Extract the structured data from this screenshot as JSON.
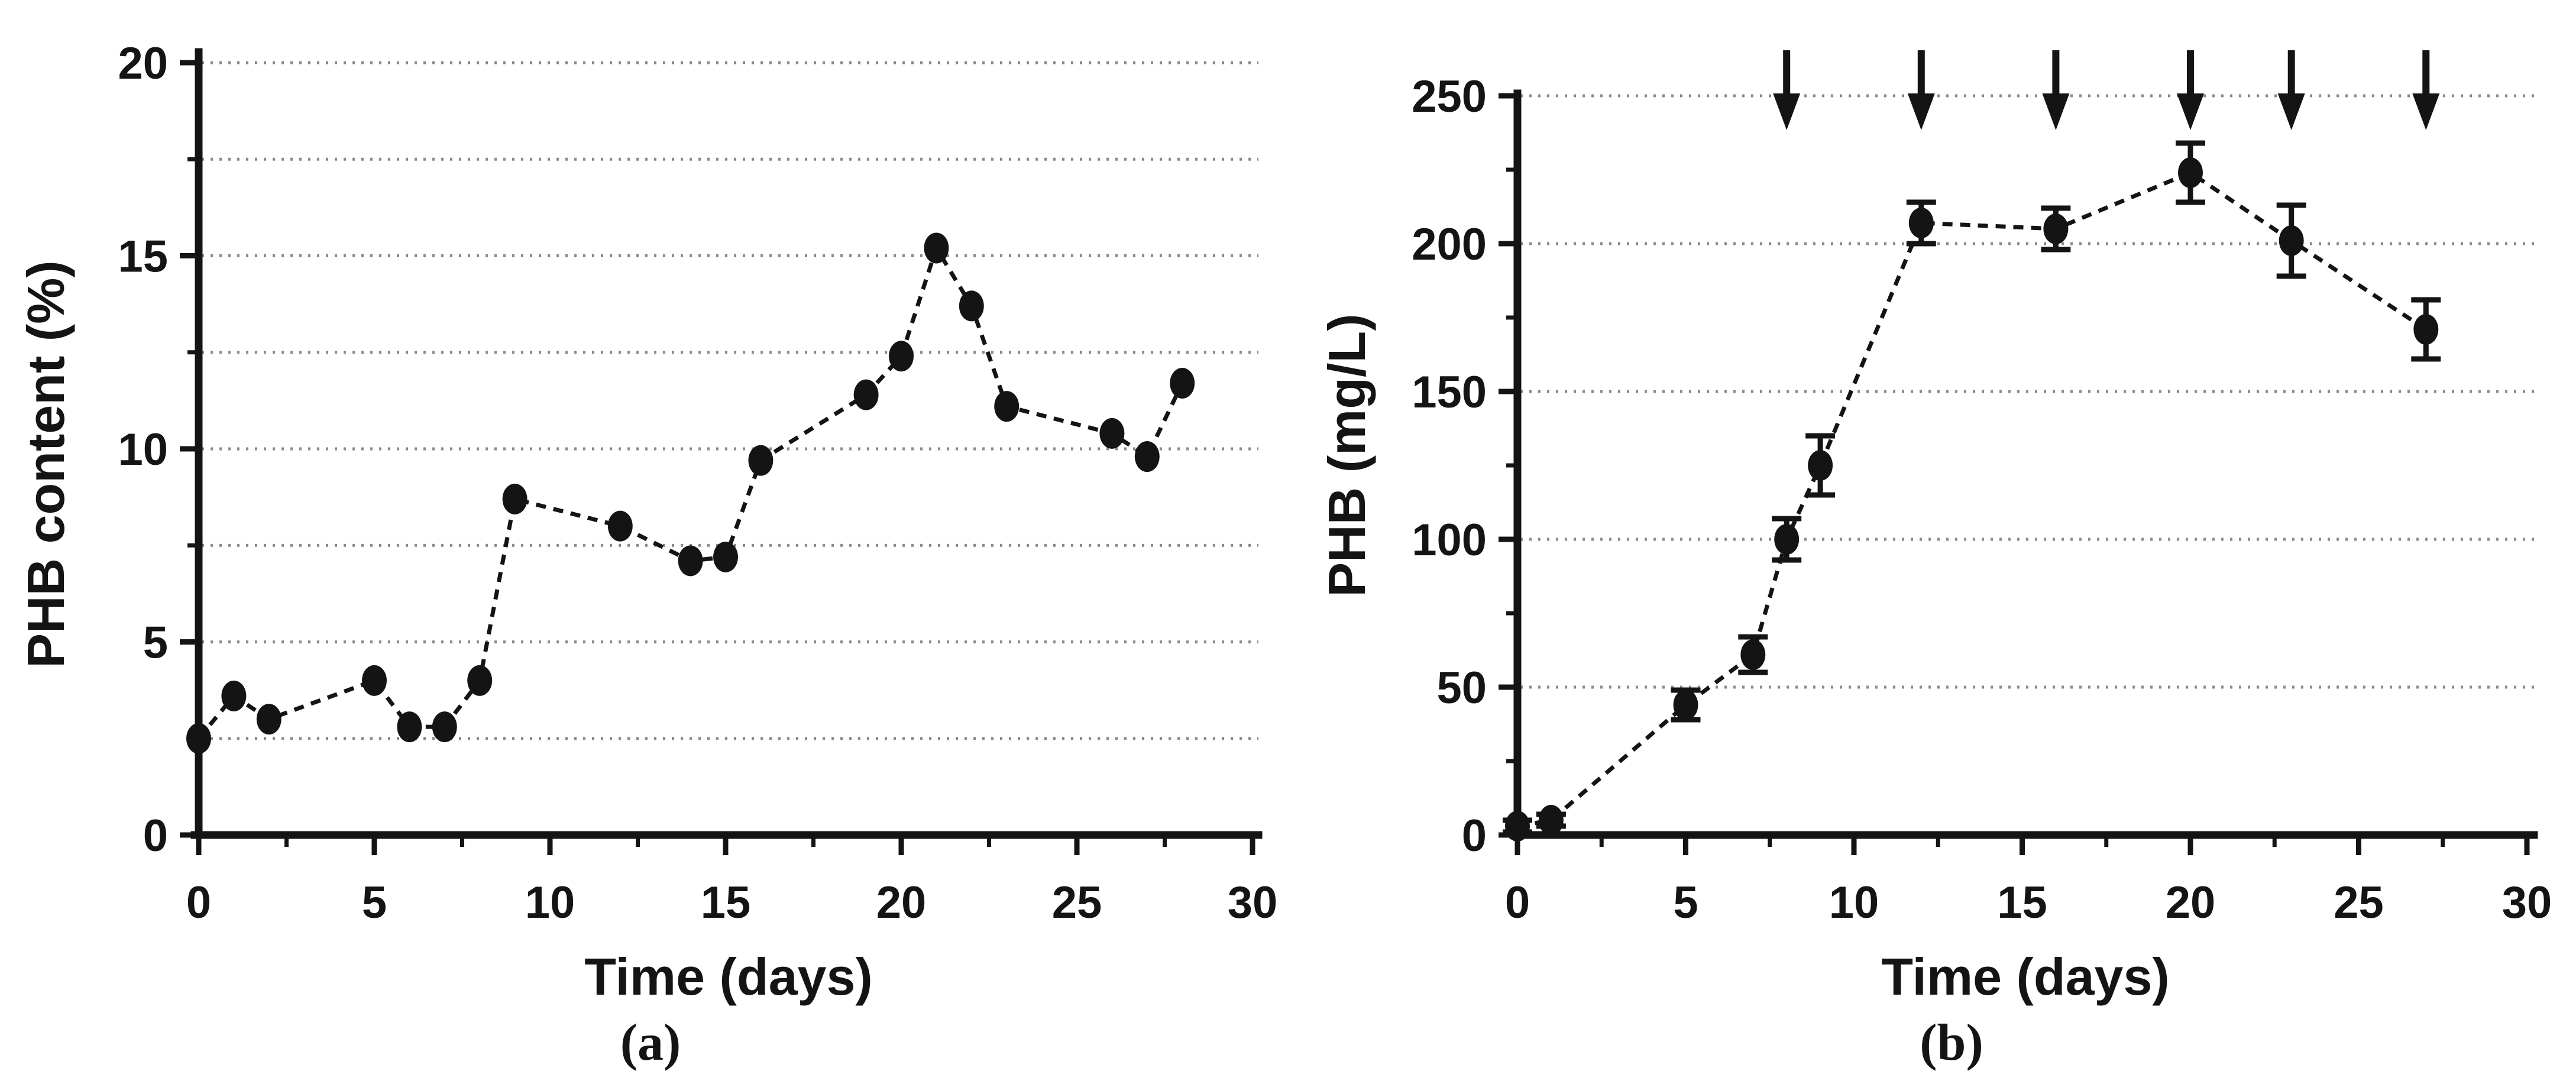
{
  "figure": {
    "background_color": "#ffffff",
    "ink_color": "#141414",
    "grid_color": "#8a8a8a",
    "description": "Two-panel time-course figure of PHB production"
  },
  "chart_data": [
    {
      "id": "a",
      "type": "scatter",
      "caption": "(a)",
      "xlabel": "Time (days)",
      "ylabel": "PHB content (%)",
      "xlim": [
        0,
        30
      ],
      "ylim": [
        0,
        20
      ],
      "x_ticks": [
        0,
        5,
        10,
        15,
        20,
        25,
        30
      ],
      "y_ticks": [
        0,
        5,
        10,
        15,
        20
      ],
      "y_grid_step": 2.5,
      "grid": "dotted-horizontal",
      "line_style": "dashed",
      "marker": "filled-black-circle",
      "legend": "none",
      "x": [
        0,
        1,
        2,
        5,
        6,
        7,
        8,
        9,
        12,
        14,
        15,
        16,
        19,
        20,
        21,
        22,
        23,
        26,
        27,
        28
      ],
      "y": [
        2.5,
        3.6,
        3.0,
        4.0,
        2.8,
        2.8,
        4.0,
        8.7,
        8.0,
        7.1,
        7.2,
        9.7,
        11.4,
        12.4,
        15.2,
        13.7,
        11.1,
        10.4,
        9.8,
        11.7
      ]
    },
    {
      "id": "b",
      "type": "scatter",
      "caption": "(b)",
      "xlabel": "Time (days)",
      "ylabel": "PHB (mg/L)",
      "xlim": [
        0,
        30
      ],
      "ylim": [
        0,
        250
      ],
      "x_ticks": [
        0,
        5,
        10,
        15,
        20,
        25,
        30
      ],
      "y_ticks": [
        0,
        50,
        100,
        150,
        200,
        250
      ],
      "y_grid_step": 50,
      "grid": "dotted-horizontal",
      "line_style": "dashed",
      "marker": "filled-black-circle",
      "legend": "none",
      "x": [
        0,
        1,
        5,
        7,
        8,
        9,
        12,
        16,
        20,
        23,
        27
      ],
      "y": [
        3,
        5,
        44,
        61,
        100,
        125,
        207,
        205,
        224,
        201,
        171
      ],
      "errors": [
        2,
        2,
        5,
        6,
        7,
        10,
        7,
        7,
        10,
        12,
        10
      ],
      "arrows": {
        "symbol": "down-arrow",
        "x_days": [
          8,
          12,
          16,
          20,
          23,
          27
        ]
      }
    }
  ]
}
